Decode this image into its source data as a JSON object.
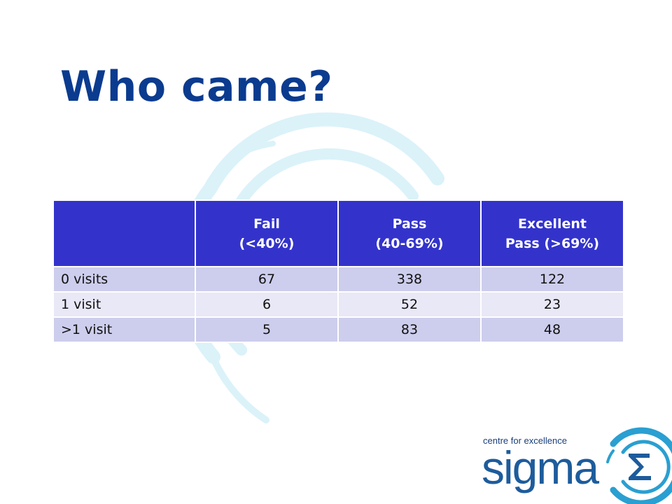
{
  "slide": {
    "title": "Who came?"
  },
  "table": {
    "headers": [
      "",
      "Fail\n(<40%)",
      "Pass\n(40-69%)",
      "Excellent\nPass (>69%)"
    ],
    "rows": [
      {
        "label": "0 visits",
        "fail": "67",
        "pass": "338",
        "excellent": "122"
      },
      {
        "label": "1 visit",
        "fail": "6",
        "pass": "52",
        "excellent": "23"
      },
      {
        "label": ">1 visit",
        "fail": "5",
        "pass": "83",
        "excellent": "48"
      }
    ]
  },
  "logo": {
    "tagline": "centre for excellence",
    "wordmark": "sigma",
    "icon": "sigma-circle-icon"
  },
  "colors": {
    "title": "#0b3b8f",
    "header_bg": "#3333cc",
    "row_odd": "#cdcded",
    "row_even": "#e8e8f6",
    "arcs": "#d9f1f8",
    "logo": "#1d5c9c"
  }
}
